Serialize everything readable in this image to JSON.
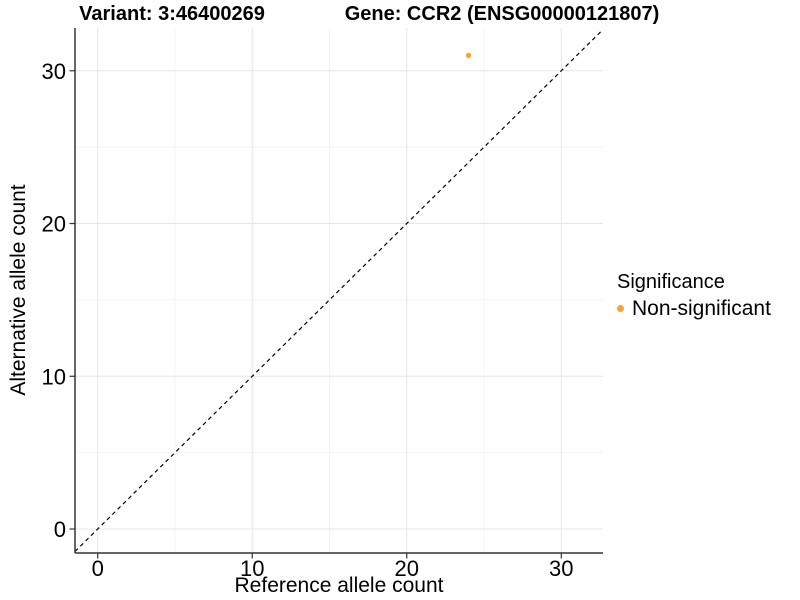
{
  "chart_data": {
    "type": "scatter",
    "titles": [
      "Variant: 3:46400269",
      "Gene: CCR2 (ENSG00000121807)"
    ],
    "xlabel": "Reference allele count",
    "ylabel": "Alternative allele count",
    "xlim": [
      -1.47,
      32.7
    ],
    "ylim": [
      -1.57,
      32.8
    ],
    "x_ticks": [
      0,
      10,
      20,
      30
    ],
    "y_ticks": [
      0,
      10,
      20,
      30
    ],
    "x_minor_ticks": [
      5,
      15,
      25
    ],
    "y_minor_ticks": [
      5,
      15,
      25
    ],
    "grid": "major and minor gridlines, light gray on white",
    "series": [
      {
        "name": "Non-significant",
        "color": "#F9A332",
        "points": [
          {
            "x": 24,
            "y": 31
          }
        ]
      }
    ],
    "reference_line": {
      "type": "identity",
      "slope": 1,
      "intercept": 0,
      "style": "dashed",
      "color": "#000000"
    },
    "legend": {
      "title": "Significance",
      "position": "right",
      "entries": [
        {
          "label": "Non-significant",
          "color": "#F9A332",
          "marker": "circle"
        }
      ]
    }
  },
  "colors": {
    "background": "#FFFFFF",
    "grid_major": "#E6E6E6",
    "grid_minor": "#F2F2F2",
    "axis": "#333333",
    "text": "#000000",
    "point": "#F9A332"
  }
}
